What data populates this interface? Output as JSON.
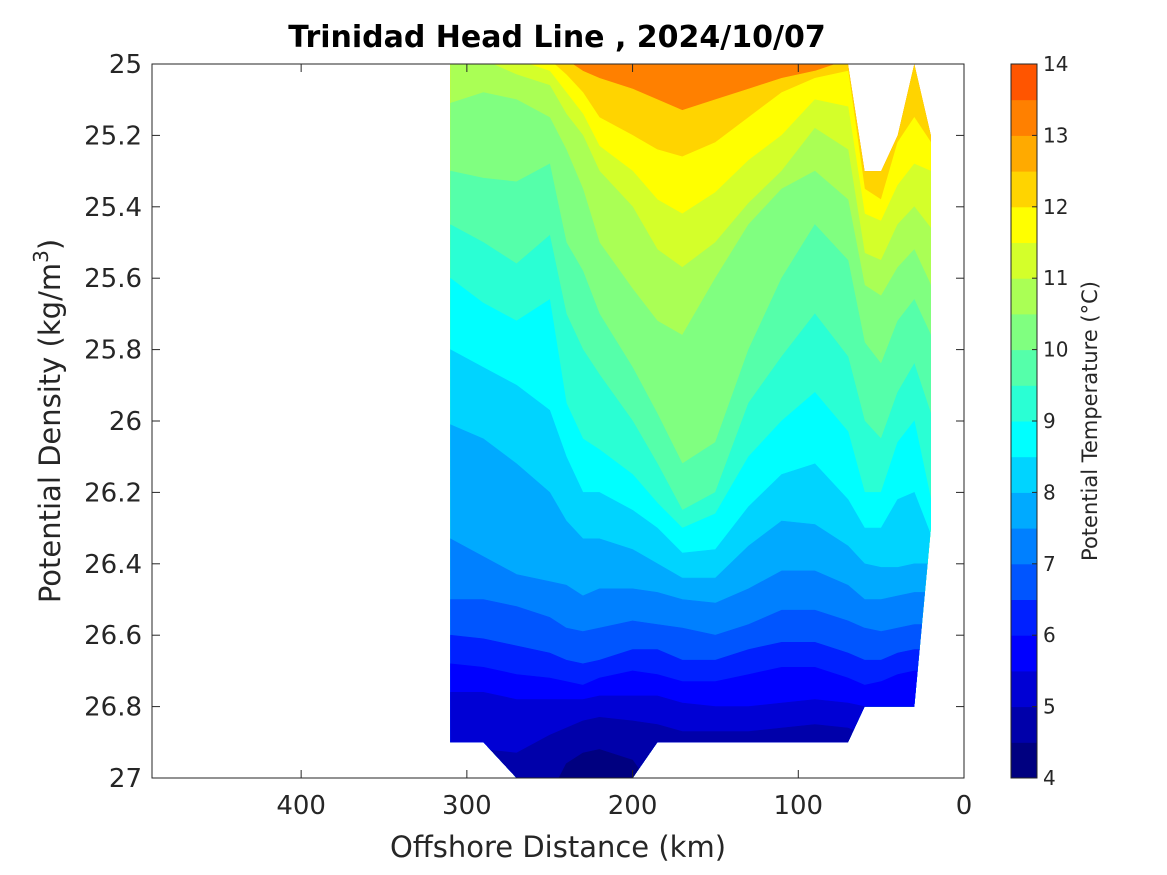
{
  "chart_data": {
    "type": "heatmap",
    "subtype": "filled-contour",
    "title": "Trinidad Head Line , 2024/10/07",
    "xlabel": "Offshore Distance (km)",
    "ylabel": "Potential Density (kg/m",
    "ylabel_superscript": "3",
    "ylabel_close": ")",
    "xlim": [
      490,
      0
    ],
    "ylim": [
      25,
      27
    ],
    "x_reversed": true,
    "y_reversed": true,
    "x_ticks": [
      "400",
      "300",
      "200",
      "100",
      "0"
    ],
    "x_tick_values": [
      400,
      300,
      200,
      100,
      0
    ],
    "y_ticks": [
      "25",
      "25.2",
      "25.4",
      "25.6",
      "25.8",
      "26",
      "26.2",
      "26.4",
      "26.6",
      "26.8",
      "27"
    ],
    "y_tick_values": [
      25,
      25.2,
      25.4,
      25.6,
      25.8,
      26,
      26.2,
      26.4,
      26.6,
      26.8,
      27
    ],
    "colorbar": {
      "label": "Potential Temperature (°C)",
      "min": 4,
      "max": 14,
      "step": 0.5,
      "ticks": [
        "4",
        "5",
        "6",
        "7",
        "8",
        "9",
        "10",
        "11",
        "12",
        "13",
        "14"
      ],
      "tick_values": [
        4,
        5,
        6,
        7,
        8,
        9,
        10,
        11,
        12,
        13,
        14
      ],
      "colormap": [
        "#000080",
        "#0000AA",
        "#0000D4",
        "#0000FF",
        "#0020FF",
        "#0055FF",
        "#0080FF",
        "#00AAFF",
        "#00D4FF",
        "#00FFFF",
        "#2AFFD4",
        "#55FFAA",
        "#80FF80",
        "#AAFF55",
        "#D4FF2A",
        "#FFFF00",
        "#FFD400",
        "#FFAA00",
        "#FF8000",
        "#FF5500",
        "#FF2A00",
        "#FF0000",
        "#D40000",
        "#AA0000"
      ]
    },
    "x": [
      310,
      290,
      270,
      250,
      240,
      230,
      220,
      200,
      185,
      170,
      150,
      130,
      110,
      90,
      70,
      60,
      50,
      40,
      30,
      20
    ],
    "isotherms": [
      {
        "level": 12.5,
        "y": [
          null,
          null,
          null,
          null,
          null,
          25.02,
          25.04,
          25.07,
          25.1,
          25.13,
          25.1,
          25.07,
          25.04,
          25.02,
          null,
          null,
          null,
          null,
          null,
          null
        ]
      },
      {
        "level": 12,
        "y": [
          null,
          null,
          null,
          null,
          25.03,
          25.08,
          25.15,
          25.2,
          25.24,
          25.26,
          25.22,
          25.15,
          25.08,
          25.04,
          25.02,
          25.35,
          25.38,
          25.22,
          25.15,
          25.22
        ]
      },
      {
        "level": 11.5,
        "y": [
          null,
          null,
          null,
          25.02,
          25.08,
          25.14,
          25.23,
          25.3,
          25.38,
          25.42,
          25.36,
          25.27,
          25.2,
          25.1,
          25.12,
          25.42,
          25.44,
          25.34,
          25.28,
          25.3
        ]
      },
      {
        "level": 11,
        "y": [
          null,
          null,
          25.03,
          25.06,
          25.14,
          25.2,
          25.3,
          25.4,
          25.52,
          25.57,
          25.5,
          25.39,
          25.3,
          25.18,
          25.24,
          25.53,
          25.55,
          25.45,
          25.4,
          25.46
        ]
      },
      {
        "level": 10.5,
        "y": [
          25.11,
          25.08,
          25.1,
          25.15,
          25.24,
          25.35,
          25.5,
          25.63,
          25.72,
          25.76,
          25.6,
          25.45,
          25.35,
          25.3,
          25.38,
          25.62,
          25.65,
          25.57,
          25.52,
          25.62
        ]
      },
      {
        "level": 10,
        "y": [
          25.3,
          25.32,
          25.33,
          25.28,
          25.5,
          25.58,
          25.7,
          25.85,
          25.98,
          26.12,
          26.06,
          25.8,
          25.6,
          25.45,
          25.55,
          25.78,
          25.84,
          25.72,
          25.66,
          25.76
        ]
      },
      {
        "level": 9.5,
        "y": [
          25.45,
          25.5,
          25.56,
          25.48,
          25.7,
          25.8,
          25.87,
          26.0,
          26.12,
          26.25,
          26.2,
          25.95,
          25.82,
          25.7,
          25.82,
          26.0,
          26.05,
          25.92,
          25.84,
          25.98
        ]
      },
      {
        "level": 9,
        "y": [
          25.6,
          25.67,
          25.72,
          25.66,
          25.95,
          26.05,
          26.08,
          26.15,
          26.23,
          26.3,
          26.26,
          26.1,
          26.0,
          25.92,
          26.03,
          26.2,
          26.2,
          26.06,
          26.0,
          26.22
        ]
      },
      {
        "level": 8.5,
        "y": [
          25.8,
          25.85,
          25.9,
          25.97,
          26.1,
          26.2,
          26.2,
          26.25,
          26.3,
          26.37,
          26.36,
          26.24,
          26.15,
          26.12,
          26.22,
          26.3,
          26.3,
          26.22,
          26.2,
          26.32
        ]
      },
      {
        "level": 8,
        "y": [
          26.01,
          26.05,
          26.12,
          26.2,
          26.28,
          26.33,
          26.33,
          26.36,
          26.4,
          26.44,
          26.44,
          26.35,
          26.28,
          26.29,
          26.35,
          26.4,
          26.41,
          26.41,
          26.4,
          26.4
        ]
      },
      {
        "level": 7.5,
        "y": [
          26.33,
          26.38,
          26.43,
          26.45,
          26.46,
          26.49,
          26.47,
          26.47,
          26.48,
          26.5,
          26.51,
          26.47,
          26.42,
          26.42,
          26.46,
          26.5,
          26.5,
          26.49,
          26.48,
          26.48
        ]
      },
      {
        "level": 7,
        "y": [
          26.5,
          26.5,
          26.52,
          26.55,
          26.58,
          26.59,
          26.58,
          26.56,
          26.57,
          26.58,
          26.6,
          26.57,
          26.53,
          26.53,
          26.56,
          26.58,
          26.59,
          26.58,
          26.57,
          26.57
        ]
      },
      {
        "level": 6.5,
        "y": [
          26.6,
          26.61,
          26.63,
          26.65,
          26.67,
          26.68,
          26.67,
          26.64,
          26.64,
          26.67,
          26.67,
          26.64,
          26.62,
          26.62,
          26.65,
          26.67,
          26.67,
          26.65,
          26.64,
          26.64
        ]
      },
      {
        "level": 6,
        "y": [
          26.68,
          26.69,
          26.71,
          26.72,
          26.73,
          26.74,
          26.72,
          26.7,
          26.71,
          26.73,
          26.73,
          26.71,
          26.69,
          26.69,
          26.72,
          26.74,
          26.73,
          26.71,
          26.7,
          26.7
        ]
      },
      {
        "level": 5.5,
        "y": [
          26.76,
          26.76,
          26.78,
          26.78,
          26.78,
          26.78,
          26.77,
          26.77,
          26.77,
          26.79,
          26.8,
          26.8,
          26.79,
          26.78,
          26.79,
          26.8,
          26.8,
          26.8,
          26.8,
          26.8
        ]
      },
      {
        "level": 5,
        "y": [
          26.9,
          26.92,
          26.93,
          26.88,
          26.86,
          26.84,
          26.83,
          26.84,
          26.85,
          26.87,
          26.87,
          26.87,
          26.86,
          26.85,
          26.86,
          26.88,
          26.88,
          26.88,
          26.88,
          26.88
        ]
      },
      {
        "level": 4.5,
        "y": [
          27.05,
          27.05,
          27.05,
          27.05,
          26.96,
          26.93,
          26.92,
          26.95,
          27.05,
          27.05,
          27.05,
          27.05,
          27.05,
          27.05,
          27.05,
          27.05,
          27.05,
          27.05,
          27.05,
          27.05
        ]
      }
    ],
    "data_extent": {
      "x": [
        310,
        290,
        270,
        250,
        240,
        230,
        220,
        200,
        185,
        170,
        150,
        130,
        110,
        90,
        70,
        60,
        50,
        40,
        30,
        20
      ],
      "top": [
        25,
        25,
        25,
        25,
        25,
        25,
        25,
        25,
        25,
        25,
        25,
        25,
        25,
        25,
        25,
        25.3,
        25.3,
        25.2,
        25,
        25.2
      ],
      "bottom": [
        26.9,
        26.9,
        27,
        27,
        27,
        27,
        27,
        27,
        26.9,
        26.9,
        26.9,
        26.9,
        26.9,
        26.9,
        26.9,
        26.8,
        26.8,
        26.8,
        26.8,
        26.3
      ]
    }
  }
}
